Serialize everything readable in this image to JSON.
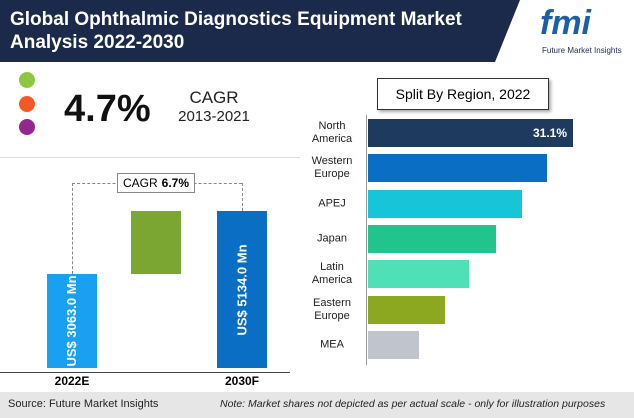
{
  "header": {
    "title": "Global Ophthalmic Diagnostics Equipment Market Analysis 2022-2030",
    "logo": "fmi",
    "logo_caption": "Future Market Insights"
  },
  "cagr_summary": {
    "value": "4.7%",
    "label": "CAGR",
    "period": "2013-2021"
  },
  "chart_data": [
    {
      "type": "column",
      "categories": [
        "2022E",
        "2030F"
      ],
      "values": [
        3063.0,
        5134.0
      ],
      "value_labels": [
        "US$ 3063.0 Mn",
        "US$ 5134.0 Mn"
      ],
      "colors": [
        "#1aa0f0",
        "#0a6fc4"
      ],
      "increment_color": "#7aa631",
      "annotation": {
        "label": "CAGR",
        "value": "6.7%"
      }
    },
    {
      "type": "hbar",
      "title": "Split By Region, 2022",
      "categories": [
        "North America",
        "Western Europe",
        "APEJ",
        "Japan",
        "Latin America",
        "Eastern Europe",
        "MEA"
      ],
      "values": [
        31.1,
        27.2,
        23.4,
        19.4,
        15.3,
        11.7,
        7.7
      ],
      "value_labels": [
        "31.1%",
        null,
        null,
        null,
        null,
        null,
        null
      ],
      "colors": [
        "#1f3a5f",
        "#0a6fc4",
        "#18c4d8",
        "#22c48e",
        "#4fe0b8",
        "#8ba820",
        "#c0c4cc"
      ]
    }
  ],
  "footer": {
    "source": "Source: Future Market Insights",
    "note": "Note: Market shares not depicted as per actual scale - only for illustration purposes"
  }
}
